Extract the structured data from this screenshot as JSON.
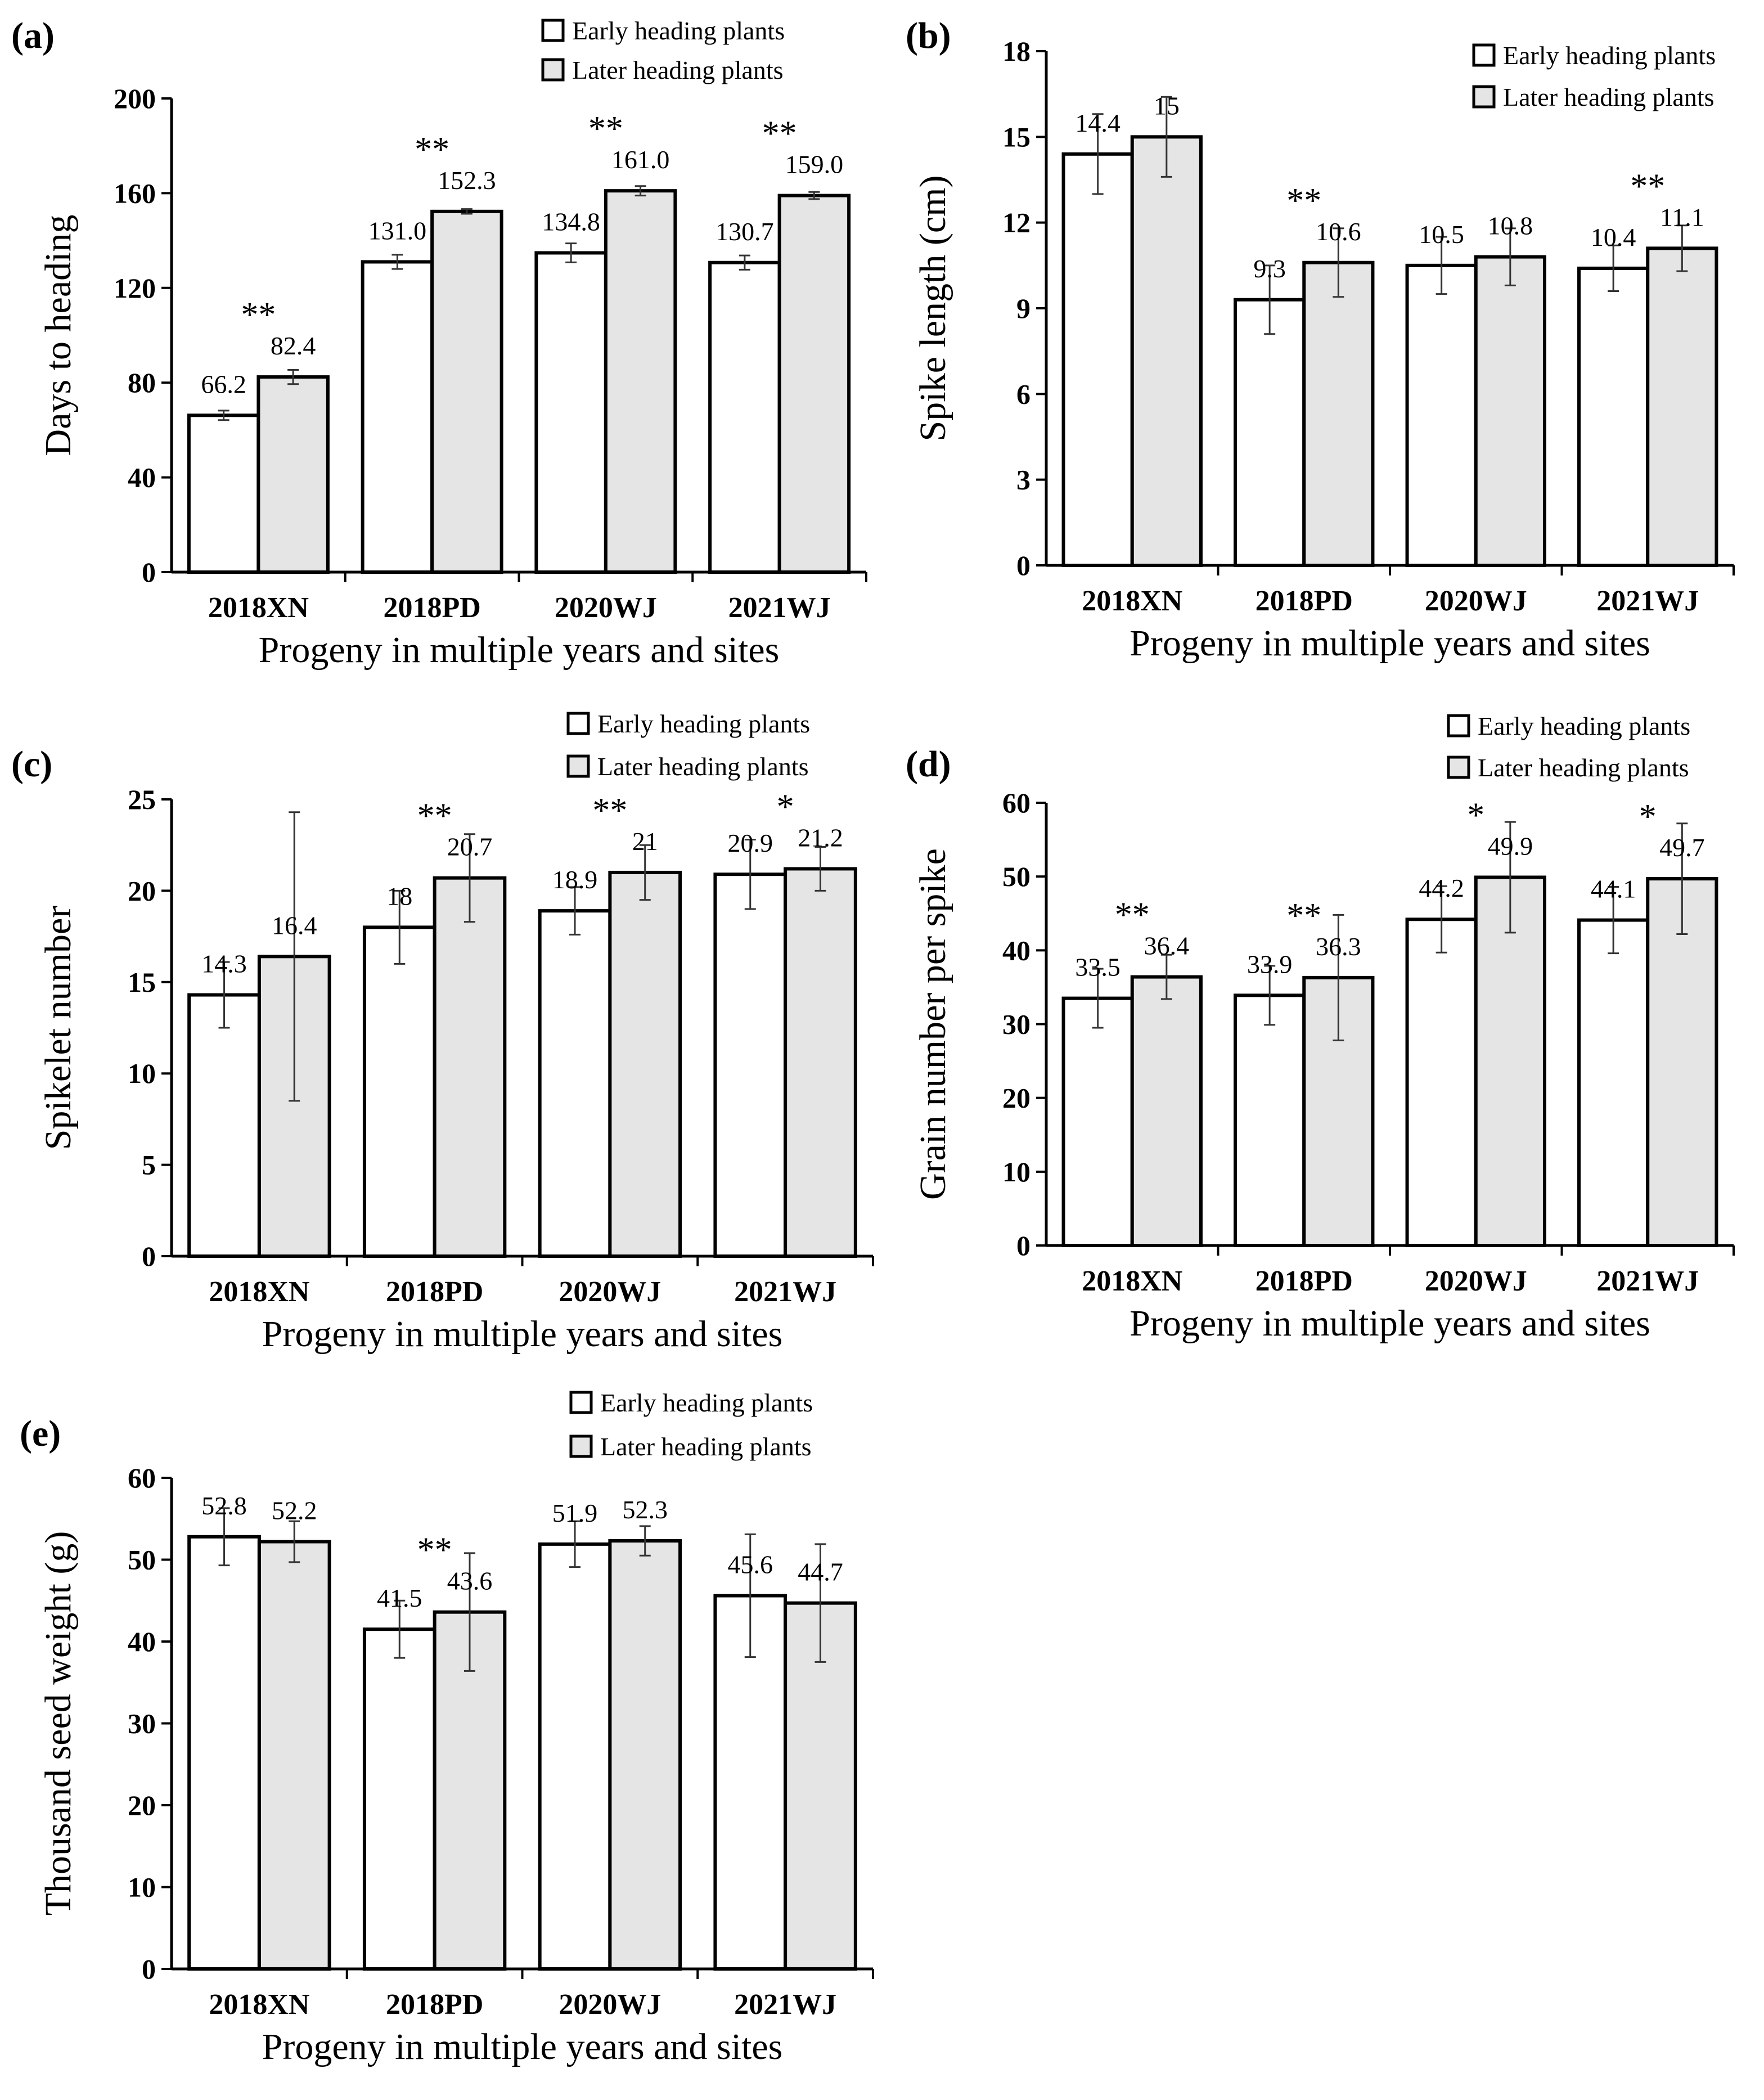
{
  "colors": {
    "early": "#ffffff",
    "later": "#e5e5e5",
    "stroke": "#000000"
  },
  "chart_data": [
    {
      "type": "bar",
      "panel_label": "(a)",
      "categories": [
        "2018XN",
        "2018PD",
        "2020WJ",
        "2021WJ"
      ],
      "series": [
        {
          "name": "Early heading plants",
          "values": [
            66.2,
            131.0,
            134.8,
            130.7
          ],
          "errors": [
            2,
            3,
            4,
            3
          ],
          "labels": [
            "66.2",
            "131.0",
            "134.8",
            "130.7"
          ]
        },
        {
          "name": "Later heading plants",
          "values": [
            82.4,
            152.3,
            161.0,
            159.0
          ],
          "errors": [
            3,
            1,
            2,
            1.5
          ],
          "labels": [
            "82.4",
            "152.3",
            "161.0",
            "159.0"
          ]
        }
      ],
      "significance": [
        "**",
        "**",
        "**",
        "**"
      ],
      "yticks": [
        "0",
        "40",
        "80",
        "120",
        "160",
        "200"
      ],
      "ylim": [
        0,
        200
      ],
      "ylabel": "Days to heading",
      "xlabel": "Progeny in multiple years and sites"
    },
    {
      "type": "bar",
      "panel_label": "(b)",
      "categories": [
        "2018XN",
        "2018PD",
        "2020WJ",
        "2021WJ"
      ],
      "series": [
        {
          "name": "Early heading plants",
          "values": [
            14.4,
            9.3,
            10.5,
            10.4
          ],
          "errors": [
            1.4,
            1.2,
            1.0,
            0.8
          ],
          "labels": [
            "14.4",
            "9.3",
            "10.5",
            "10.4"
          ]
        },
        {
          "name": "Later heading plants",
          "values": [
            15,
            10.6,
            10.8,
            11.1
          ],
          "errors": [
            1.4,
            1.2,
            1.0,
            0.8
          ],
          "labels": [
            "15",
            "10.6",
            "10.8",
            "11.1"
          ]
        }
      ],
      "significance": [
        "",
        "**",
        "",
        "**"
      ],
      "yticks": [
        "0",
        "3",
        "6",
        "9",
        "12",
        "15",
        "18"
      ],
      "ylim": [
        0,
        18
      ],
      "ylabel": "Spike length (cm)",
      "xlabel": "Progeny in multiple years and sites"
    },
    {
      "type": "bar",
      "panel_label": "(c)",
      "categories": [
        "2018XN",
        "2018PD",
        "2020WJ",
        "2021WJ"
      ],
      "series": [
        {
          "name": "Early heading plants",
          "values": [
            14.3,
            18,
            18.9,
            20.9
          ],
          "errors": [
            1.8,
            2.0,
            1.3,
            1.9
          ],
          "labels": [
            "14.3",
            "18",
            "18.9",
            "20.9"
          ]
        },
        {
          "name": "Later heading plants",
          "values": [
            16.4,
            20.7,
            21,
            21.2
          ],
          "errors": [
            7.9,
            2.4,
            1.5,
            1.2
          ],
          "labels": [
            "16.4",
            "20.7",
            "21",
            "21.2"
          ]
        }
      ],
      "significance": [
        "",
        "**",
        "**",
        "*"
      ],
      "yticks": [
        "0",
        "5",
        "10",
        "15",
        "20",
        "25"
      ],
      "ylim": [
        0,
        25
      ],
      "ylabel": "Spikelet number",
      "xlabel": "Progeny in multiple years and sites"
    },
    {
      "type": "bar",
      "panel_label": "(d)",
      "categories": [
        "2018XN",
        "2018PD",
        "2020WJ",
        "2021WJ"
      ],
      "series": [
        {
          "name": "Early heading plants",
          "values": [
            33.5,
            33.9,
            44.2,
            44.1
          ],
          "errors": [
            4,
            4,
            4.5,
            4.5
          ],
          "labels": [
            "33.5",
            "33.9",
            "44.2",
            "44.1"
          ]
        },
        {
          "name": "Later heading plants",
          "values": [
            36.4,
            36.3,
            49.9,
            49.7
          ],
          "errors": [
            3,
            8.5,
            7.5,
            7.5
          ],
          "labels": [
            "36.4",
            "36.3",
            "49.9",
            "49.7"
          ]
        }
      ],
      "significance": [
        "**",
        "**",
        "*",
        "*"
      ],
      "yticks": [
        "0",
        "10",
        "20",
        "30",
        "40",
        "50",
        "60"
      ],
      "ylim": [
        0,
        60
      ],
      "ylabel": "Grain number per spike",
      "xlabel": "Progeny in multiple years and sites"
    },
    {
      "type": "bar",
      "panel_label": "(e)",
      "categories": [
        "2018XN",
        "2018PD",
        "2020WJ",
        "2021WJ"
      ],
      "series": [
        {
          "name": "Early heading plants",
          "values": [
            52.8,
            41.5,
            51.9,
            45.6
          ],
          "errors": [
            3.5,
            3.5,
            2.8,
            7.5
          ],
          "labels": [
            "52.8",
            "41.5",
            "51.9",
            "45.6"
          ]
        },
        {
          "name": "Later heading plants",
          "values": [
            52.2,
            43.6,
            52.3,
            44.7
          ],
          "errors": [
            2.5,
            7.2,
            1.8,
            7.2
          ],
          "labels": [
            "52.2",
            "43.6",
            "52.3",
            "44.7"
          ]
        }
      ],
      "significance": [
        "",
        "**",
        "",
        ""
      ],
      "yticks": [
        "0",
        "10",
        "20",
        "30",
        "40",
        "50",
        "60"
      ],
      "ylim": [
        0,
        60
      ],
      "ylabel": "Thousand seed weight (g)",
      "xlabel": "Progeny in multiple years and sites"
    }
  ]
}
